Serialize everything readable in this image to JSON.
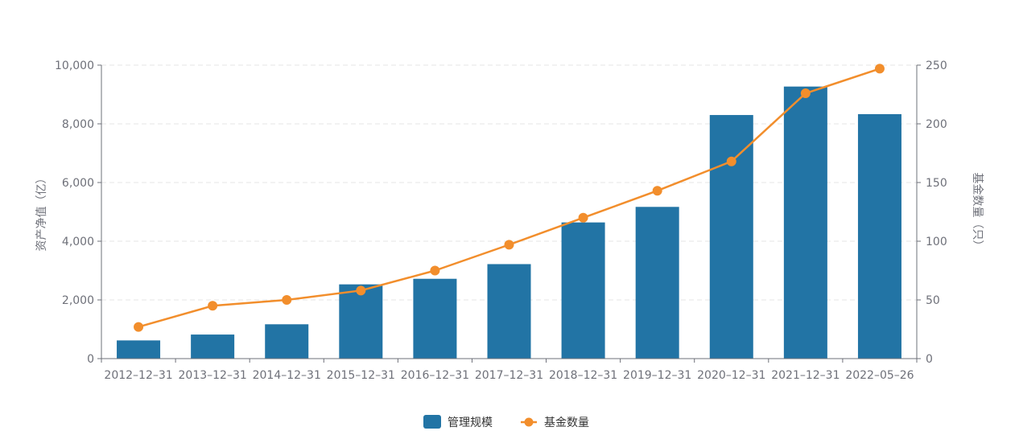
{
  "chart_data": {
    "type": "bar",
    "categories": [
      "2012–12–31",
      "2013–12–31",
      "2014–12–31",
      "2015–12–31",
      "2016–12–31",
      "2017–12–31",
      "2018–12–31",
      "2019–12–31",
      "2020–12–31",
      "2021–12–31",
      "2022–05–26"
    ],
    "series": [
      {
        "name": "管理规模",
        "type": "bar",
        "axis": "left",
        "color": "#2274a5",
        "values": [
          620,
          820,
          1170,
          2530,
          2720,
          3220,
          4640,
          5170,
          8300,
          9270,
          8330
        ]
      },
      {
        "name": "基金数量",
        "type": "line",
        "axis": "right",
        "color": "#f28e2c",
        "values": [
          27,
          45,
          50,
          58,
          75,
          97,
          120,
          143,
          168,
          226,
          247
        ]
      }
    ],
    "y_left": {
      "label": "资产净值（亿）",
      "ylim": [
        0,
        10000
      ],
      "ticks": [
        "0",
        "2,000",
        "4,000",
        "6,000",
        "8,000",
        "10,000"
      ]
    },
    "y_right": {
      "label": "基金数量（只）",
      "ylim": [
        0,
        250
      ],
      "ticks": [
        "0",
        "50",
        "100",
        "150",
        "200",
        "250"
      ]
    },
    "grid": true,
    "legend": "bottom-center"
  }
}
